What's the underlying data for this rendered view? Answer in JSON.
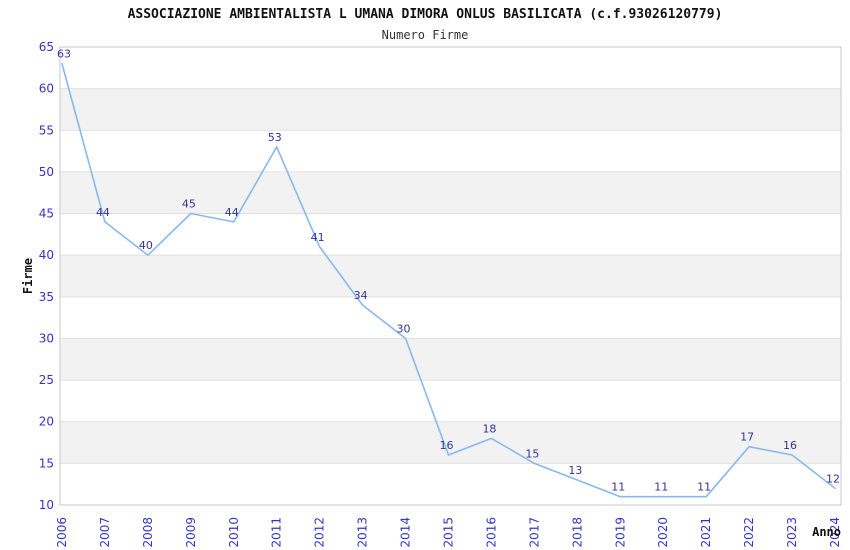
{
  "header": {
    "title": "ASSOCIAZIONE AMBIENTALISTA L UMANA DIMORA ONLUS BASILICATA (c.f.93026120779)",
    "subtitle": "Numero Firme"
  },
  "chart_data": {
    "type": "line",
    "title": "ASSOCIAZIONE AMBIENTALISTA L UMANA DIMORA ONLUS BASILICATA (c.f.93026120779)",
    "subtitle": "Numero Firme",
    "xlabel": "Anno",
    "ylabel": "Firme",
    "categories": [
      "2006",
      "2007",
      "2008",
      "2009",
      "2010",
      "2011",
      "2012",
      "2013",
      "2014",
      "2015",
      "2016",
      "2017",
      "2018",
      "2019",
      "2020",
      "2021",
      "2022",
      "2023",
      "2024"
    ],
    "values": [
      63,
      44,
      40,
      45,
      44,
      53,
      41,
      34,
      30,
      16,
      18,
      15,
      13,
      11,
      11,
      11,
      17,
      16,
      12
    ],
    "ylim": [
      10,
      65
    ],
    "ytick_step": 5,
    "grid": true,
    "legend": "none",
    "colors": {
      "line": "#88b8ec",
      "band": "#f2f2f2",
      "gridline": "#e0e0e0",
      "frame": "#c9c9c9",
      "tick_label": "#3333cc",
      "data_label": "#333399"
    }
  }
}
